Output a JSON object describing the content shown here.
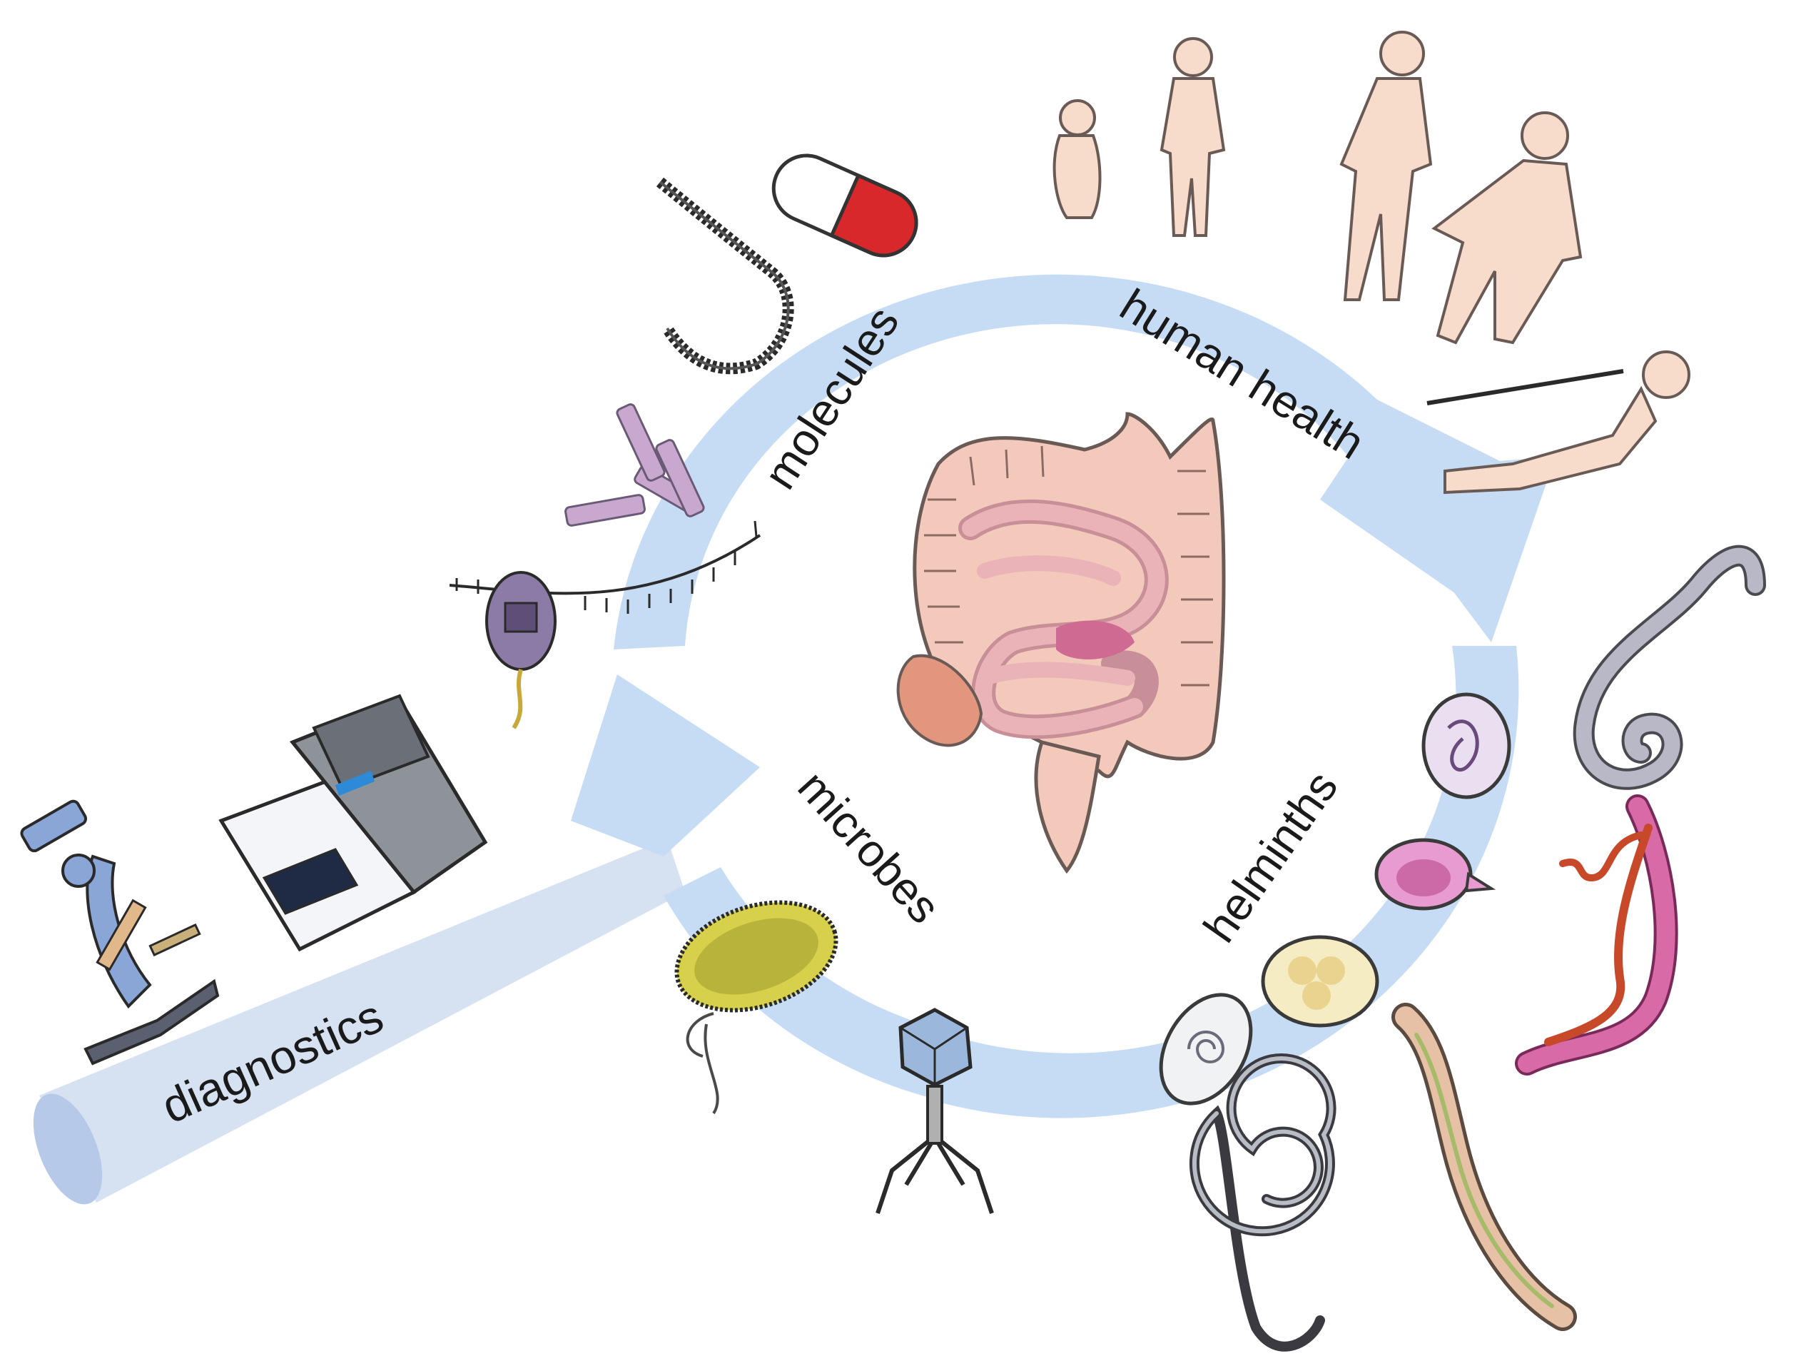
{
  "labels": {
    "molecules": "molecules",
    "human_health": "human health",
    "helminths": "helminths",
    "microbes": "microbes",
    "diagnostics": "diagnostics"
  },
  "colors": {
    "cycle_arrow": "#c6dcf5",
    "diagnostics_beam": "#cfdcf0",
    "gut": "#f3c9bb",
    "small_intestine": "#e9b3b8",
    "body": "#f7dccb",
    "capsule_red": "#d8282c",
    "antibody": "#c9a8cf",
    "nanopore": "#8c7ba6",
    "bacterium": "#d6d04a",
    "phage": "#9bb8dc",
    "worm_pink": "#d86aa8",
    "worm_grey": "#a8a8b8",
    "microscope": "#8aa6d6",
    "sequencer": "#8e9399"
  }
}
